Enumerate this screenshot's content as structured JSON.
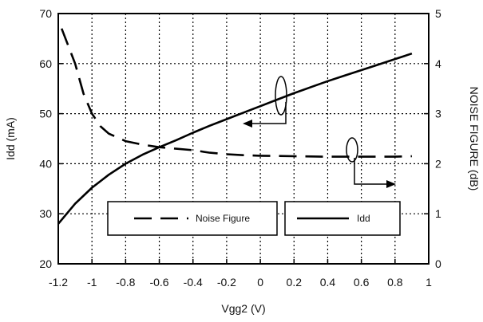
{
  "chart_data": {
    "type": "line",
    "xlabel": "Vgg2 (V)",
    "ylabel": "Idd (mA)",
    "y2label": "NOISE FIGURE (dB)",
    "xlim": [
      -1.2,
      1
    ],
    "ylim": [
      20,
      70
    ],
    "y2lim": [
      0,
      5
    ],
    "x_ticks": [
      "-1.2",
      "-1",
      "-0.8",
      "-0.6",
      "-0.4",
      "-0.2",
      "0",
      "0.2",
      "0.4",
      "0.6",
      "0.8",
      "1"
    ],
    "y_ticks": [
      "20",
      "30",
      "40",
      "50",
      "60",
      "70"
    ],
    "y2_ticks": [
      "0",
      "1",
      "2",
      "3",
      "4",
      "5"
    ],
    "grid": true,
    "legend_position": "bottom-center",
    "series": [
      {
        "name": "Idd",
        "axis": "left",
        "style": "solid",
        "x": [
          -1.2,
          -1.1,
          -1.0,
          -0.9,
          -0.8,
          -0.7,
          -0.6,
          -0.5,
          -0.4,
          -0.3,
          -0.2,
          -0.1,
          0.0,
          0.1,
          0.2,
          0.3,
          0.4,
          0.5,
          0.6,
          0.7,
          0.8,
          0.9
        ],
        "values": [
          28,
          32,
          35.2,
          37.8,
          40.0,
          41.8,
          43.3,
          44.7,
          46.2,
          47.6,
          48.9,
          50.2,
          51.5,
          52.8,
          54.1,
          55.3,
          56.5,
          57.6,
          58.7,
          59.8,
          60.9,
          62.0
        ]
      },
      {
        "name": "Noise Figure",
        "axis": "right",
        "style": "dashed",
        "x": [
          -1.18,
          -1.1,
          -1.05,
          -1.0,
          -0.95,
          -0.9,
          -0.8,
          -0.7,
          -0.6,
          -0.5,
          -0.4,
          -0.3,
          -0.2,
          -0.1,
          0.0,
          0.2,
          0.4,
          0.6,
          0.8,
          0.9
        ],
        "values": [
          4.7,
          4.0,
          3.4,
          3.0,
          2.75,
          2.6,
          2.45,
          2.38,
          2.33,
          2.3,
          2.27,
          2.22,
          2.19,
          2.17,
          2.16,
          2.15,
          2.14,
          2.14,
          2.14,
          2.15
        ]
      }
    ]
  }
}
